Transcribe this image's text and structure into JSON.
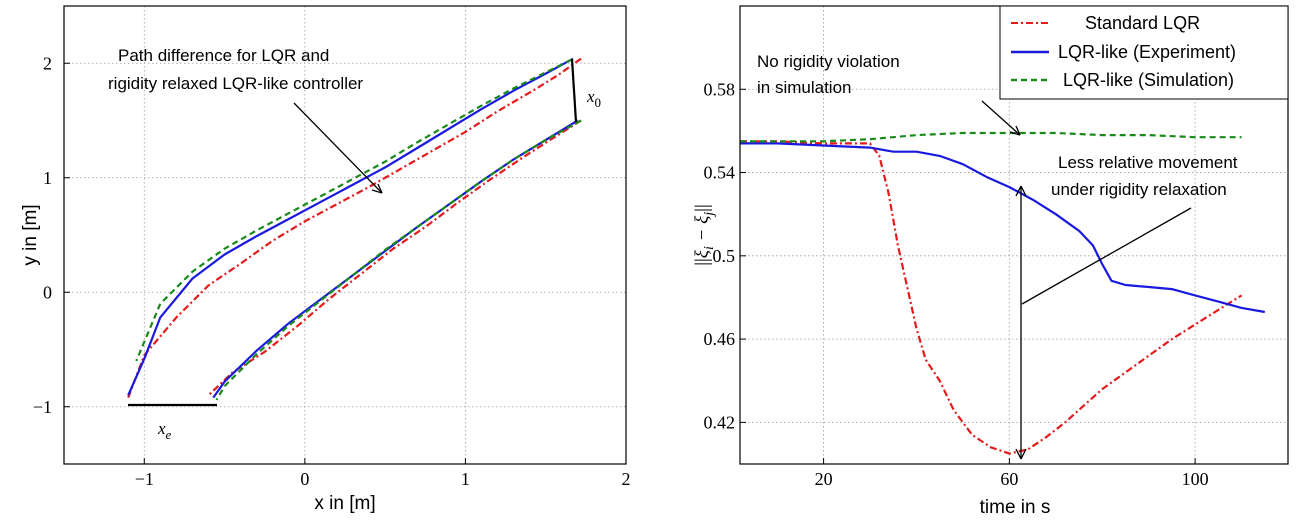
{
  "chart_data": [
    {
      "type": "line",
      "xlabel": "x in [m]",
      "ylabel": "y in [m]",
      "xlim": [
        -1.5,
        2
      ],
      "ylim": [
        -1.5,
        2.5
      ],
      "xticks": [
        -1,
        0,
        1,
        2
      ],
      "yticks": [
        -1,
        0,
        1,
        2
      ],
      "xtick_labels": [
        "−1",
        "0",
        "1",
        "2"
      ],
      "ytick_labels": [
        "−1",
        "0",
        "1",
        "2"
      ],
      "grid": true,
      "series": [
        {
          "style": "dashdot",
          "color": "#e41a1c",
          "x": [
            1.72,
            1.58,
            1.42,
            1.2,
            1.0,
            0.8,
            0.6,
            0.4,
            0.2,
            0.0,
            -0.2,
            -0.4,
            -0.6,
            -0.8,
            -1.0,
            -1.1
          ],
          "y": [
            2.04,
            1.9,
            1.76,
            1.58,
            1.4,
            1.24,
            1.08,
            0.92,
            0.77,
            0.62,
            0.45,
            0.25,
            0.06,
            -0.22,
            -0.55,
            -0.92
          ]
        },
        {
          "style": "dashdot",
          "color": "#e41a1c",
          "x": [
            1.72,
            1.55,
            1.35,
            1.15,
            0.95,
            0.75,
            0.55,
            0.35,
            0.15,
            -0.05,
            -0.25,
            -0.45,
            -0.6
          ],
          "y": [
            1.5,
            1.35,
            1.17,
            0.98,
            0.78,
            0.57,
            0.38,
            0.16,
            -0.06,
            -0.3,
            -0.52,
            -0.7,
            -0.9
          ]
        },
        {
          "style": "solid",
          "color": "#1a1adf",
          "x": [
            1.67,
            1.5,
            1.3,
            1.1,
            0.9,
            0.7,
            0.5,
            0.3,
            0.1,
            -0.1,
            -0.3,
            -0.5,
            -0.7,
            -0.9,
            -1.0,
            -1.1
          ],
          "y": [
            2.04,
            1.91,
            1.76,
            1.6,
            1.43,
            1.26,
            1.09,
            0.94,
            0.79,
            0.64,
            0.49,
            0.33,
            0.12,
            -0.22,
            -0.58,
            -0.9
          ]
        },
        {
          "style": "solid",
          "color": "#1a1adf",
          "x": [
            1.7,
            1.5,
            1.3,
            1.1,
            0.9,
            0.7,
            0.5,
            0.3,
            0.1,
            -0.1,
            -0.3,
            -0.5,
            -0.57
          ],
          "y": [
            1.5,
            1.33,
            1.16,
            0.97,
            0.77,
            0.57,
            0.36,
            0.15,
            -0.06,
            -0.27,
            -0.51,
            -0.78,
            -0.92
          ]
        },
        {
          "style": "dashed",
          "color": "#1a8a1a",
          "x": [
            1.66,
            1.5,
            1.3,
            1.1,
            0.9,
            0.7,
            0.5,
            0.3,
            0.1,
            -0.1,
            -0.3,
            -0.5,
            -0.7,
            -0.9,
            -1.05
          ],
          "y": [
            2.03,
            1.92,
            1.78,
            1.63,
            1.47,
            1.31,
            1.14,
            0.99,
            0.84,
            0.69,
            0.54,
            0.38,
            0.18,
            -0.1,
            -0.6
          ]
        },
        {
          "style": "dashed",
          "color": "#1a8a1a",
          "x": [
            1.72,
            1.5,
            1.3,
            1.1,
            0.9,
            0.7,
            0.5,
            0.3,
            0.1,
            -0.1,
            -0.3,
            -0.5,
            -0.55
          ],
          "y": [
            1.5,
            1.33,
            1.16,
            0.97,
            0.77,
            0.57,
            0.37,
            0.15,
            -0.07,
            -0.29,
            -0.54,
            -0.82,
            -0.94
          ]
        }
      ],
      "annotations": [
        {
          "text_lines": [
            "Path difference for LQR and",
            "rigidity relaxed LQR-like controller"
          ]
        },
        {
          "text": "x_0",
          "base": "x",
          "sub": "0"
        },
        {
          "text": "x_e",
          "base": "x",
          "sub": "e"
        }
      ]
    },
    {
      "type": "line",
      "xlabel": "time in s",
      "ylabel": "||ξ_i − ξ_j||",
      "xlim": [
        2,
        120
      ],
      "ylim": [
        0.4,
        0.62
      ],
      "xticks": [
        20,
        60,
        100
      ],
      "yticks": [
        0.42,
        0.46,
        0.5,
        0.54,
        0.58
      ],
      "xtick_labels": [
        "20",
        "60",
        "100"
      ],
      "ytick_labels": [
        "0.42",
        "0.46",
        "0.5",
        "0.54",
        "0.58"
      ],
      "grid": true,
      "legend": "top-right",
      "series": [
        {
          "name": "Standard LQR",
          "style": "dashdot",
          "color": "#e41a1c",
          "x": [
            2,
            10,
            20,
            30,
            32,
            34,
            36,
            38,
            40,
            42,
            45,
            48,
            52,
            56,
            60,
            64,
            68,
            72,
            76,
            80,
            85,
            90,
            95,
            100,
            105,
            110
          ],
          "y": [
            0.555,
            0.555,
            0.554,
            0.554,
            0.548,
            0.53,
            0.505,
            0.485,
            0.465,
            0.45,
            0.44,
            0.426,
            0.414,
            0.408,
            0.405,
            0.407,
            0.413,
            0.42,
            0.428,
            0.436,
            0.444,
            0.452,
            0.46,
            0.467,
            0.474,
            0.481
          ]
        },
        {
          "name": "LQR-like (Experiment)",
          "style": "solid",
          "color": "#1a1adf",
          "x": [
            2,
            10,
            20,
            30,
            35,
            40,
            45,
            50,
            55,
            60,
            65,
            70,
            75,
            78,
            80,
            82,
            85,
            90,
            95,
            100,
            105,
            110,
            115
          ],
          "y": [
            0.554,
            0.554,
            0.553,
            0.552,
            0.55,
            0.55,
            0.548,
            0.544,
            0.538,
            0.533,
            0.527,
            0.52,
            0.512,
            0.505,
            0.496,
            0.488,
            0.486,
            0.485,
            0.484,
            0.481,
            0.478,
            0.475,
            0.473
          ]
        },
        {
          "name": "LQR-like (Simulation)",
          "style": "dashed",
          "color": "#1a8a1a",
          "x": [
            2,
            10,
            20,
            30,
            40,
            50,
            60,
            70,
            80,
            90,
            100,
            110
          ],
          "y": [
            0.555,
            0.555,
            0.555,
            0.556,
            0.558,
            0.559,
            0.559,
            0.559,
            0.558,
            0.558,
            0.557,
            0.557
          ]
        }
      ],
      "annotations": [
        {
          "text_lines": [
            "No rigidity violation",
            "in simulation"
          ]
        },
        {
          "text_lines": [
            "Less relative movement",
            "under rigidity relaxation"
          ]
        }
      ]
    }
  ]
}
